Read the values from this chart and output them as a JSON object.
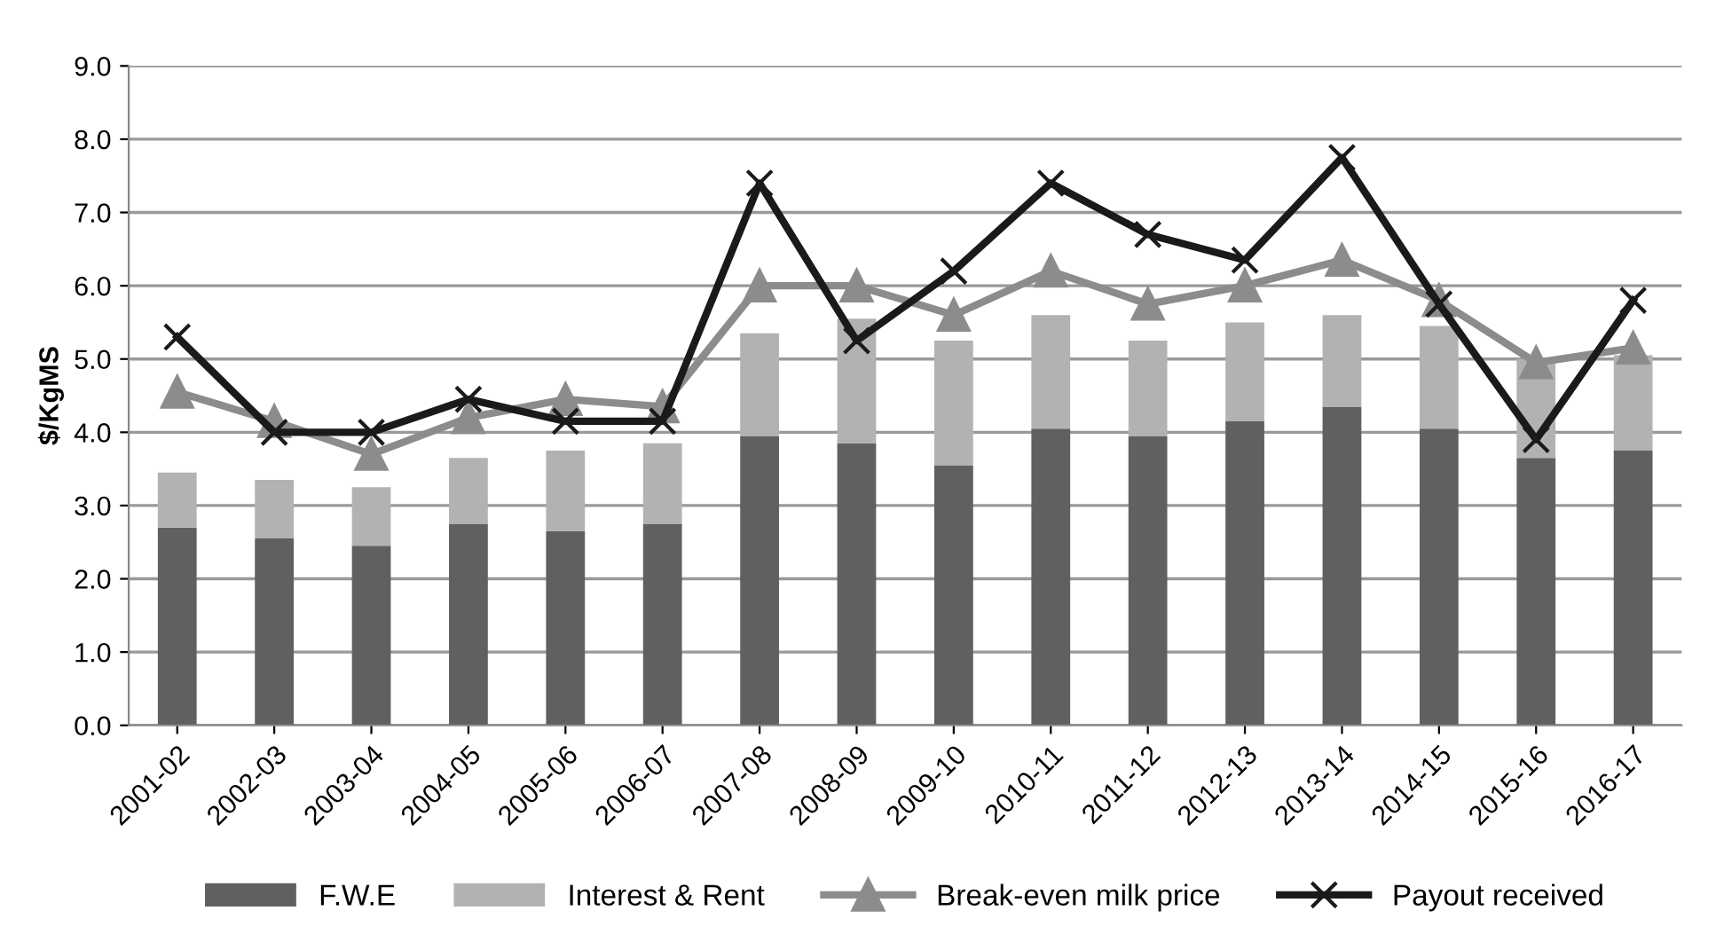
{
  "chart_data": {
    "type": "bar",
    "stacked": true,
    "ylabel": "$/KgMS",
    "categories": [
      "2001-02",
      "2002-03",
      "2003-04",
      "2004-05",
      "2005-06",
      "2006-07",
      "2007-08",
      "2008-09",
      "2009-10",
      "2010-11",
      "2011-12",
      "2012-13",
      "2013-14",
      "2014-15",
      "2015-16",
      "2016-17"
    ],
    "series": [
      {
        "name": "F.W.E",
        "color": "#606060",
        "values": [
          2.7,
          2.55,
          2.45,
          2.75,
          2.65,
          2.75,
          3.95,
          3.85,
          3.55,
          4.05,
          3.95,
          4.15,
          4.35,
          4.05,
          3.65,
          3.75
        ]
      },
      {
        "name": "Interest & Rent",
        "color": "#b2b2b2",
        "values": [
          0.75,
          0.8,
          0.8,
          0.9,
          1.1,
          1.1,
          1.4,
          1.7,
          1.7,
          1.55,
          1.3,
          1.35,
          1.25,
          1.4,
          1.35,
          1.3
        ]
      },
      {
        "name": "Break-even milk price",
        "type": "line",
        "marker": "triangle",
        "color": "#8c8c8c",
        "values": [
          4.55,
          4.15,
          3.7,
          4.2,
          4.45,
          4.35,
          6.0,
          6.0,
          5.6,
          6.2,
          5.75,
          6.0,
          6.35,
          5.8,
          4.95,
          5.15
        ]
      },
      {
        "name": "Payout received",
        "type": "line",
        "marker": "cross",
        "color": "#1a1a1a",
        "values": [
          5.3,
          4.0,
          4.0,
          4.45,
          4.15,
          4.15,
          7.4,
          5.25,
          6.2,
          7.4,
          6.7,
          6.35,
          7.75,
          5.75,
          3.9,
          5.8
        ]
      }
    ],
    "ylim": [
      0,
      9
    ],
    "yticks": [
      {
        "value": 0,
        "label": "0.0"
      },
      {
        "value": 1,
        "label": "1.0"
      },
      {
        "value": 2,
        "label": "2.0"
      },
      {
        "value": 3,
        "label": "3.0"
      },
      {
        "value": 4,
        "label": "4.0"
      },
      {
        "value": 5,
        "label": "5.0"
      },
      {
        "value": 6,
        "label": "6.0"
      },
      {
        "value": 7,
        "label": "7.0"
      },
      {
        "value": 8,
        "label": "8.0"
      },
      {
        "value": 9,
        "label": "9.0"
      }
    ],
    "grid": "y",
    "legend": "bottom"
  }
}
